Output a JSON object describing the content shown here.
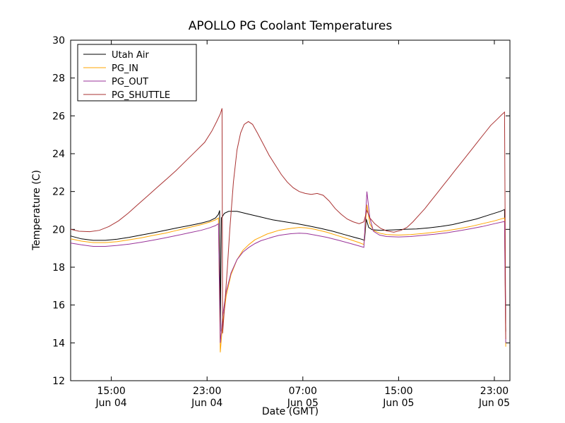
{
  "chart_data": {
    "type": "line",
    "title": "APOLLO PG Coolant Temperatures",
    "xlabel": "Date (GMT)",
    "ylabel": "Temperature (C)",
    "x_unit": "hours since Jun 04 00:00 GMT",
    "xlim": [
      11.6,
      48.3
    ],
    "ylim": [
      12,
      30
    ],
    "grid": false,
    "legend_position": "upper-left",
    "background_color": "#ffffff",
    "yticks": [
      12,
      14,
      16,
      18,
      20,
      22,
      24,
      26,
      28,
      30
    ],
    "xticks": [
      {
        "x": 15,
        "time": "15:00",
        "date": "Jun 04"
      },
      {
        "x": 23,
        "time": "23:00",
        "date": "Jun 04"
      },
      {
        "x": 31,
        "time": "07:00",
        "date": "Jun 05"
      },
      {
        "x": 39,
        "time": "15:00",
        "date": "Jun 05"
      },
      {
        "x": 47,
        "time": "23:00",
        "date": "Jun 05"
      }
    ],
    "series": [
      {
        "name": "Utah Air",
        "color": "#000000",
        "points": [
          [
            11.6,
            19.65
          ],
          [
            12.5,
            19.5
          ],
          [
            13.5,
            19.42
          ],
          [
            14.5,
            19.42
          ],
          [
            15.5,
            19.48
          ],
          [
            16.5,
            19.58
          ],
          [
            17.5,
            19.7
          ],
          [
            18.5,
            19.82
          ],
          [
            19.5,
            19.95
          ],
          [
            20.5,
            20.08
          ],
          [
            21.5,
            20.2
          ],
          [
            22.5,
            20.33
          ],
          [
            23.2,
            20.45
          ],
          [
            23.7,
            20.6
          ],
          [
            23.95,
            20.8
          ],
          [
            24.05,
            21.0
          ],
          [
            24.1,
            14.6
          ],
          [
            24.2,
            20.6
          ],
          [
            24.45,
            20.85
          ],
          [
            24.8,
            20.95
          ],
          [
            25.5,
            20.95
          ],
          [
            26.5,
            20.8
          ],
          [
            27.5,
            20.65
          ],
          [
            28.5,
            20.5
          ],
          [
            29.5,
            20.4
          ],
          [
            30.5,
            20.3
          ],
          [
            31.5,
            20.18
          ],
          [
            32.5,
            20.05
          ],
          [
            33.5,
            19.9
          ],
          [
            34.5,
            19.72
          ],
          [
            35.3,
            19.58
          ],
          [
            35.9,
            19.48
          ],
          [
            36.15,
            19.42
          ],
          [
            36.3,
            20.55
          ],
          [
            36.5,
            20.1
          ],
          [
            36.8,
            19.98
          ],
          [
            37.5,
            19.95
          ],
          [
            38.5,
            19.97
          ],
          [
            39.5,
            20.0
          ],
          [
            40.5,
            20.02
          ],
          [
            41.5,
            20.08
          ],
          [
            42.5,
            20.15
          ],
          [
            43.5,
            20.25
          ],
          [
            44.5,
            20.4
          ],
          [
            45.5,
            20.55
          ],
          [
            46.5,
            20.75
          ],
          [
            47.5,
            20.95
          ],
          [
            47.85,
            21.05
          ],
          [
            47.95,
            14.6
          ]
        ]
      },
      {
        "name": "PG_IN",
        "color": "#FFA500",
        "points": [
          [
            11.6,
            19.5
          ],
          [
            12.5,
            19.38
          ],
          [
            13.5,
            19.3
          ],
          [
            14.5,
            19.3
          ],
          [
            15.5,
            19.35
          ],
          [
            16.5,
            19.45
          ],
          [
            17.5,
            19.55
          ],
          [
            18.5,
            19.68
          ],
          [
            19.5,
            19.8
          ],
          [
            20.5,
            19.95
          ],
          [
            21.5,
            20.1
          ],
          [
            22.5,
            20.25
          ],
          [
            23.2,
            20.38
          ],
          [
            23.7,
            20.5
          ],
          [
            23.95,
            20.6
          ],
          [
            24.1,
            13.5
          ],
          [
            24.3,
            15.0
          ],
          [
            24.6,
            16.5
          ],
          [
            25.0,
            17.6
          ],
          [
            25.5,
            18.4
          ],
          [
            26.0,
            18.9
          ],
          [
            26.5,
            19.2
          ],
          [
            27.0,
            19.45
          ],
          [
            27.5,
            19.6
          ],
          [
            28.0,
            19.75
          ],
          [
            28.5,
            19.85
          ],
          [
            29.0,
            19.95
          ],
          [
            29.5,
            20.0
          ],
          [
            30.0,
            20.05
          ],
          [
            30.7,
            20.1
          ],
          [
            31.3,
            20.08
          ],
          [
            32.0,
            20.0
          ],
          [
            33.0,
            19.85
          ],
          [
            34.0,
            19.65
          ],
          [
            35.0,
            19.45
          ],
          [
            35.7,
            19.3
          ],
          [
            36.1,
            19.2
          ],
          [
            36.35,
            21.3
          ],
          [
            36.6,
            20.3
          ],
          [
            36.9,
            19.95
          ],
          [
            37.4,
            19.8
          ],
          [
            38.0,
            19.72
          ],
          [
            39.0,
            19.7
          ],
          [
            40.0,
            19.72
          ],
          [
            41.0,
            19.78
          ],
          [
            42.0,
            19.85
          ],
          [
            43.0,
            19.93
          ],
          [
            44.0,
            20.03
          ],
          [
            45.0,
            20.15
          ],
          [
            46.0,
            20.3
          ],
          [
            47.0,
            20.45
          ],
          [
            47.85,
            20.6
          ],
          [
            47.95,
            13.8
          ]
        ]
      },
      {
        "name": "PG_OUT",
        "color": "#993399",
        "points": [
          [
            11.6,
            19.28
          ],
          [
            12.5,
            19.18
          ],
          [
            13.5,
            19.1
          ],
          [
            14.5,
            19.1
          ],
          [
            15.5,
            19.15
          ],
          [
            16.5,
            19.22
          ],
          [
            17.5,
            19.32
          ],
          [
            18.5,
            19.43
          ],
          [
            19.5,
            19.55
          ],
          [
            20.5,
            19.68
          ],
          [
            21.5,
            19.82
          ],
          [
            22.5,
            19.95
          ],
          [
            23.2,
            20.08
          ],
          [
            23.7,
            20.2
          ],
          [
            23.95,
            20.3
          ],
          [
            24.1,
            14.0
          ],
          [
            24.3,
            15.4
          ],
          [
            24.6,
            16.7
          ],
          [
            25.0,
            17.7
          ],
          [
            25.5,
            18.4
          ],
          [
            26.0,
            18.8
          ],
          [
            26.5,
            19.05
          ],
          [
            27.0,
            19.25
          ],
          [
            27.5,
            19.4
          ],
          [
            28.0,
            19.5
          ],
          [
            28.5,
            19.6
          ],
          [
            29.0,
            19.68
          ],
          [
            29.5,
            19.73
          ],
          [
            30.0,
            19.77
          ],
          [
            30.7,
            19.8
          ],
          [
            31.3,
            19.78
          ],
          [
            32.0,
            19.7
          ],
          [
            33.0,
            19.58
          ],
          [
            34.0,
            19.42
          ],
          [
            35.0,
            19.25
          ],
          [
            35.7,
            19.12
          ],
          [
            36.1,
            19.05
          ],
          [
            36.35,
            22.0
          ],
          [
            36.6,
            20.6
          ],
          [
            36.9,
            19.9
          ],
          [
            37.4,
            19.7
          ],
          [
            38.0,
            19.62
          ],
          [
            39.0,
            19.6
          ],
          [
            40.0,
            19.62
          ],
          [
            41.0,
            19.68
          ],
          [
            42.0,
            19.74
          ],
          [
            43.0,
            19.82
          ],
          [
            44.0,
            19.92
          ],
          [
            45.0,
            20.03
          ],
          [
            46.0,
            20.15
          ],
          [
            47.0,
            20.3
          ],
          [
            47.85,
            20.42
          ],
          [
            47.95,
            14.0
          ]
        ]
      },
      {
        "name": "PG_SHUTTLE",
        "color": "#AA3333",
        "points": [
          [
            11.6,
            20.0
          ],
          [
            12.3,
            19.9
          ],
          [
            13.2,
            19.88
          ],
          [
            14.0,
            19.95
          ],
          [
            14.8,
            20.15
          ],
          [
            15.6,
            20.45
          ],
          [
            16.4,
            20.85
          ],
          [
            17.2,
            21.3
          ],
          [
            18.0,
            21.75
          ],
          [
            18.8,
            22.2
          ],
          [
            19.6,
            22.65
          ],
          [
            20.4,
            23.1
          ],
          [
            21.2,
            23.6
          ],
          [
            22.0,
            24.1
          ],
          [
            22.8,
            24.6
          ],
          [
            23.4,
            25.2
          ],
          [
            23.8,
            25.7
          ],
          [
            24.1,
            26.1
          ],
          [
            24.25,
            26.4
          ],
          [
            24.3,
            14.5
          ],
          [
            24.5,
            16.2
          ],
          [
            24.7,
            18.0
          ],
          [
            24.9,
            20.0
          ],
          [
            25.2,
            22.5
          ],
          [
            25.5,
            24.2
          ],
          [
            25.8,
            25.1
          ],
          [
            26.1,
            25.55
          ],
          [
            26.45,
            25.7
          ],
          [
            26.8,
            25.55
          ],
          [
            27.2,
            25.1
          ],
          [
            27.7,
            24.5
          ],
          [
            28.2,
            23.9
          ],
          [
            28.7,
            23.4
          ],
          [
            29.2,
            22.9
          ],
          [
            29.7,
            22.5
          ],
          [
            30.2,
            22.2
          ],
          [
            30.7,
            22.0
          ],
          [
            31.2,
            21.9
          ],
          [
            31.7,
            21.85
          ],
          [
            32.2,
            21.9
          ],
          [
            32.7,
            21.8
          ],
          [
            33.2,
            21.5
          ],
          [
            33.7,
            21.1
          ],
          [
            34.2,
            20.8
          ],
          [
            34.7,
            20.55
          ],
          [
            35.2,
            20.4
          ],
          [
            35.7,
            20.3
          ],
          [
            36.1,
            20.4
          ],
          [
            36.35,
            21.0
          ],
          [
            36.6,
            20.6
          ],
          [
            37.0,
            20.3
          ],
          [
            37.5,
            20.05
          ],
          [
            38.0,
            19.92
          ],
          [
            38.6,
            19.85
          ],
          [
            39.2,
            19.95
          ],
          [
            39.7,
            20.1
          ],
          [
            40.2,
            20.4
          ],
          [
            40.7,
            20.75
          ],
          [
            41.2,
            21.1
          ],
          [
            41.7,
            21.5
          ],
          [
            42.2,
            21.9
          ],
          [
            42.7,
            22.3
          ],
          [
            43.2,
            22.7
          ],
          [
            43.7,
            23.1
          ],
          [
            44.2,
            23.5
          ],
          [
            44.7,
            23.9
          ],
          [
            45.2,
            24.3
          ],
          [
            45.7,
            24.7
          ],
          [
            46.2,
            25.1
          ],
          [
            46.7,
            25.5
          ],
          [
            47.2,
            25.8
          ],
          [
            47.6,
            26.05
          ],
          [
            47.85,
            26.2
          ],
          [
            47.95,
            14.2
          ]
        ]
      }
    ]
  }
}
